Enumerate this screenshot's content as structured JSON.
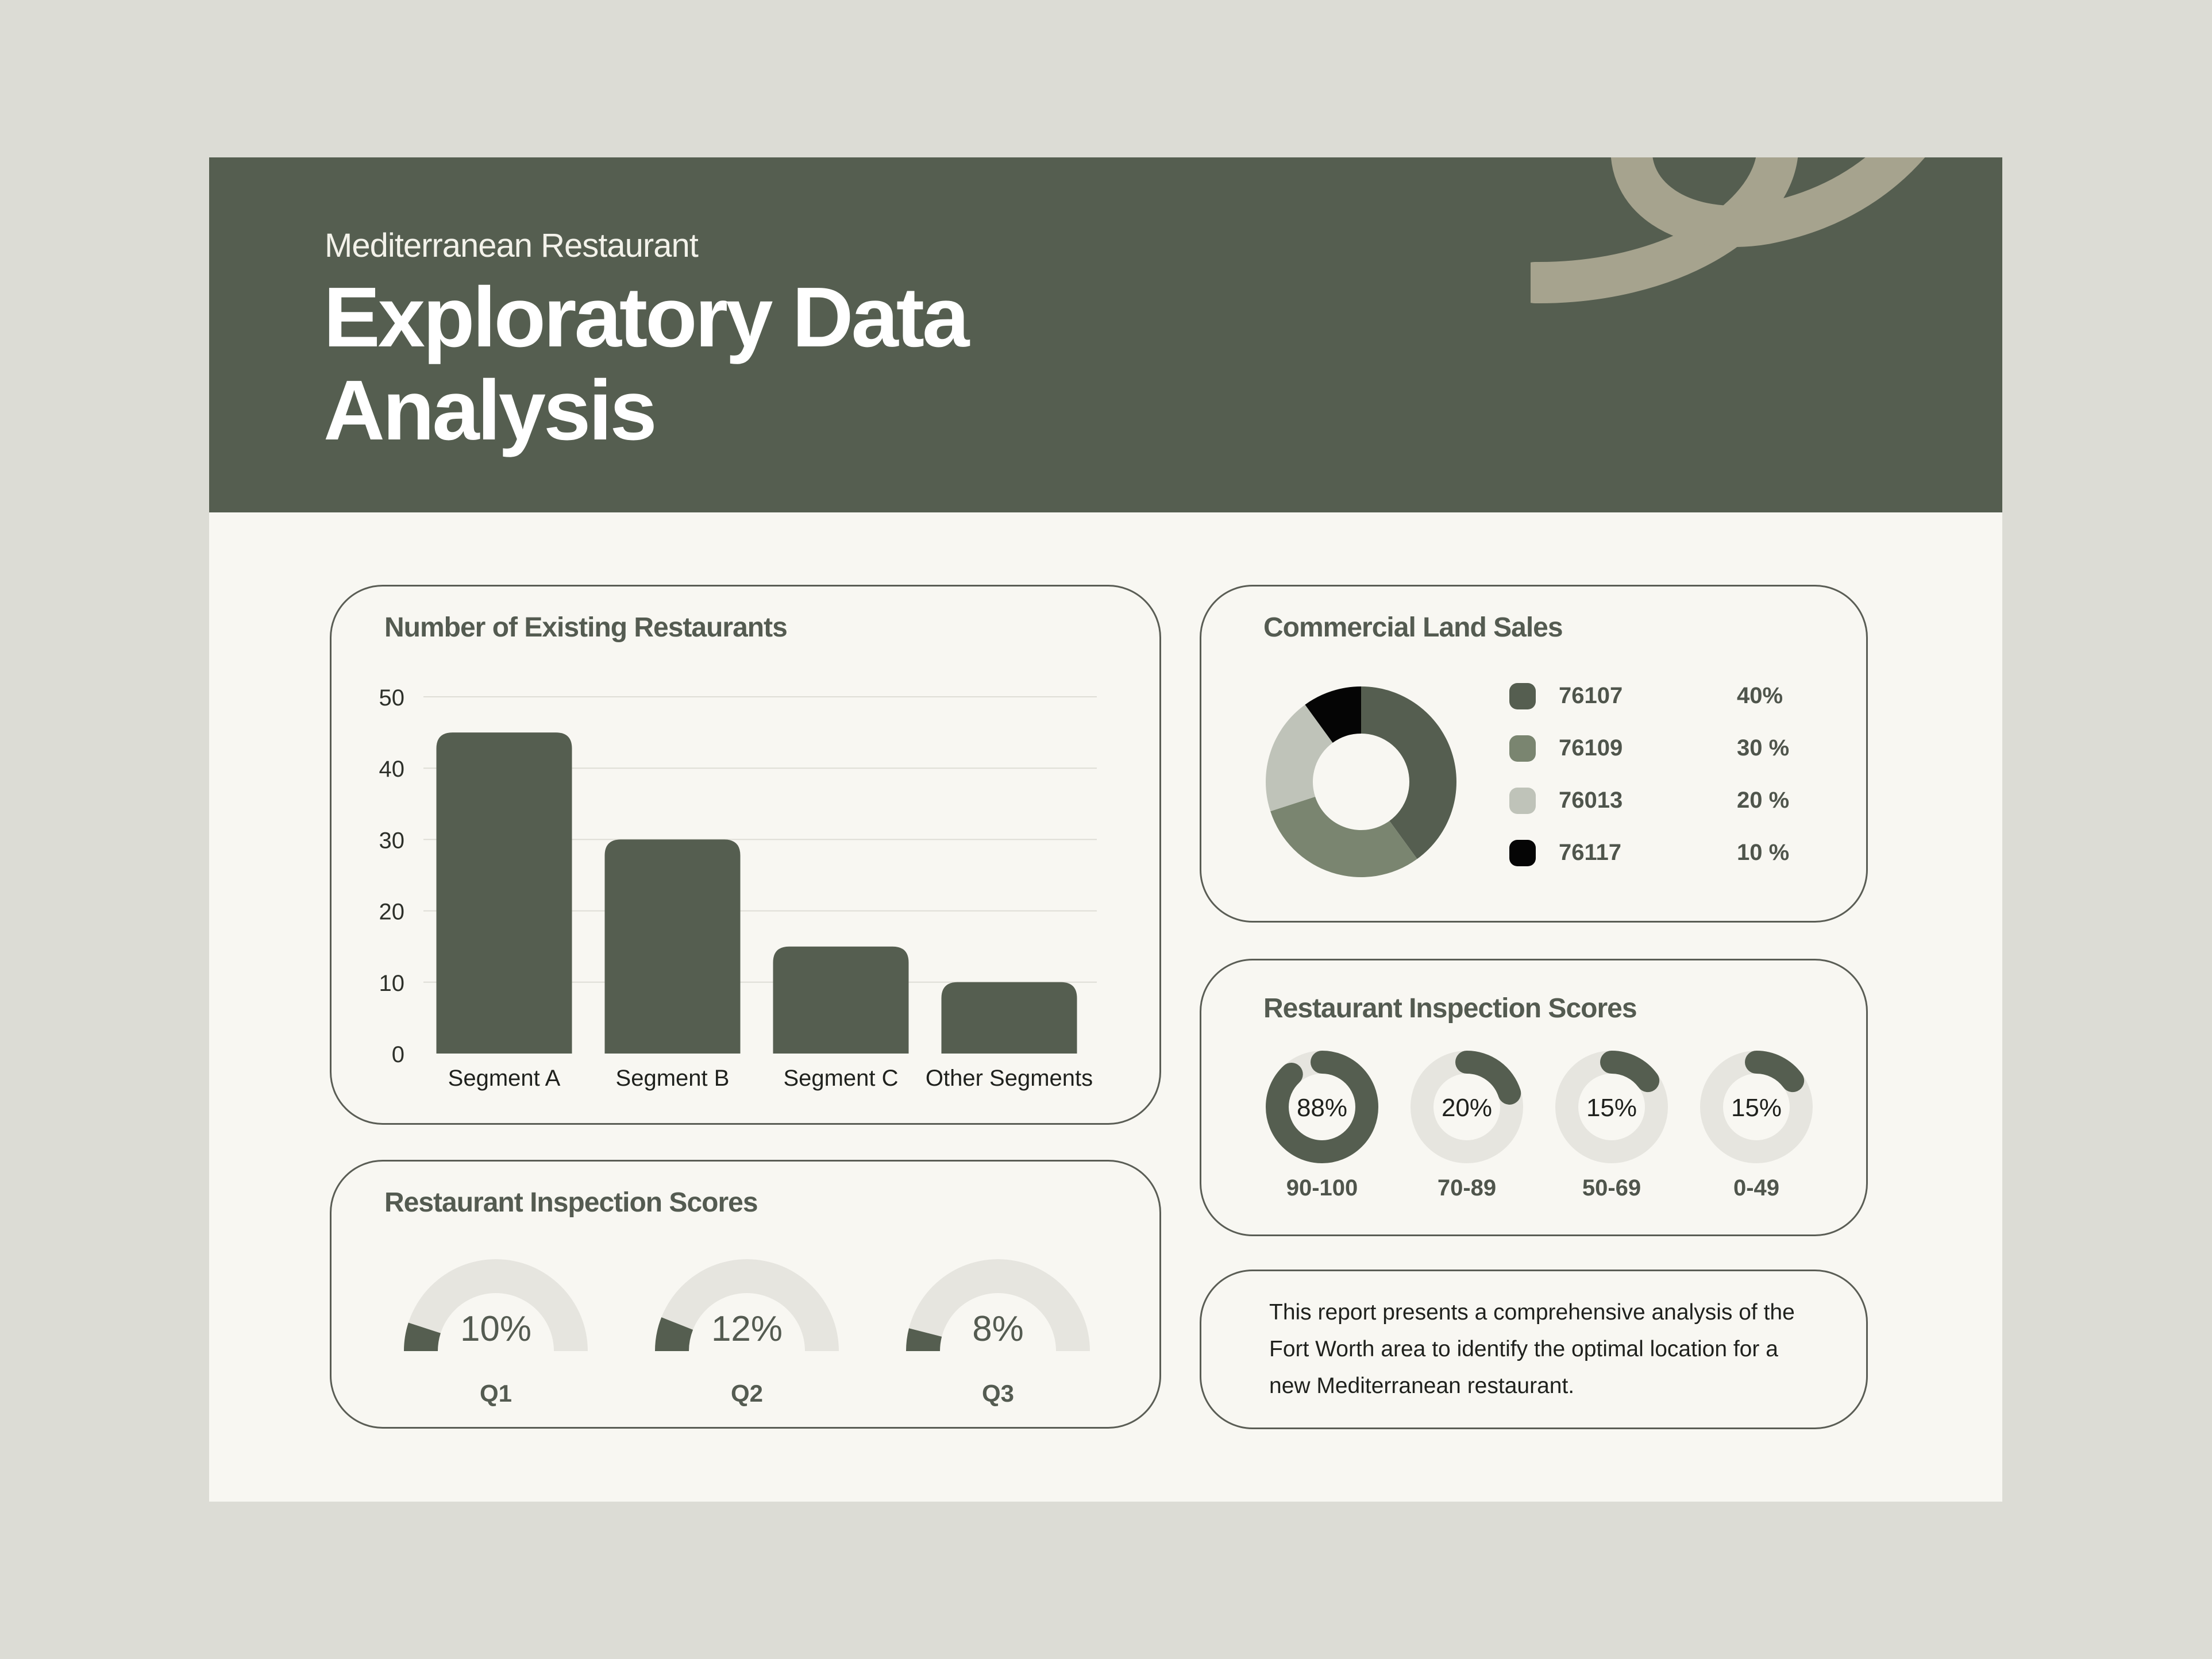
{
  "header": {
    "subtitle": "Mediterranean Restaurant",
    "title_line1": "Exploratory Data",
    "title_line2": "Analysis"
  },
  "colors": {
    "dark": "#555e50",
    "mid": "#7a8570",
    "light": "#bfc3b9",
    "black": "#050505",
    "track": "#e6e5df",
    "accent": "#a6a38e"
  },
  "bar_card": {
    "title": "Number of Existing Restaurants"
  },
  "land_card": {
    "title": "Commercial Land Sales",
    "legend": [
      {
        "code": "76107",
        "pct": "40%",
        "color": "#555e50"
      },
      {
        "code": "76109",
        "pct": "30 %",
        "color": "#7a8570"
      },
      {
        "code": "76013",
        "pct": "20 %",
        "color": "#bfc3b9"
      },
      {
        "code": "76117",
        "pct": "10 %",
        "color": "#050505"
      }
    ]
  },
  "score_card": {
    "title": "Restaurant Inspection Scores",
    "items": [
      {
        "value": "88%",
        "range": "90-100",
        "fraction": 0.88
      },
      {
        "value": "20%",
        "range": "70-89",
        "fraction": 0.2
      },
      {
        "value": "15%",
        "range": "50-69",
        "fraction": 0.15
      },
      {
        "value": "15%",
        "range": "0-49",
        "fraction": 0.15
      }
    ]
  },
  "quarter_card": {
    "title": "Restaurant Inspection Scores",
    "items": [
      {
        "value": "10%",
        "label": "Q1",
        "fraction": 0.1
      },
      {
        "value": "12%",
        "label": "Q2",
        "fraction": 0.12
      },
      {
        "value": "8%",
        "label": "Q3",
        "fraction": 0.08
      }
    ]
  },
  "summary": {
    "text": "This report presents a comprehensive analysis of the Fort Worth area to identify the optimal location for a new Mediterranean restaurant."
  },
  "chart_data": [
    {
      "type": "bar",
      "title": "Number of Existing Restaurants",
      "categories": [
        "Segment A",
        "Segment B",
        "Segment C",
        "Other Segments"
      ],
      "values": [
        45,
        30,
        15,
        10
      ],
      "ylim": [
        0,
        50
      ],
      "yticks": [
        "0",
        "10",
        "20",
        "30",
        "40",
        "50"
      ],
      "grid": true
    },
    {
      "type": "pie",
      "title": "Commercial Land Sales",
      "labels": [
        "76107",
        "76109",
        "76013",
        "76117"
      ],
      "values": [
        40,
        30,
        20,
        10
      ]
    }
  ]
}
